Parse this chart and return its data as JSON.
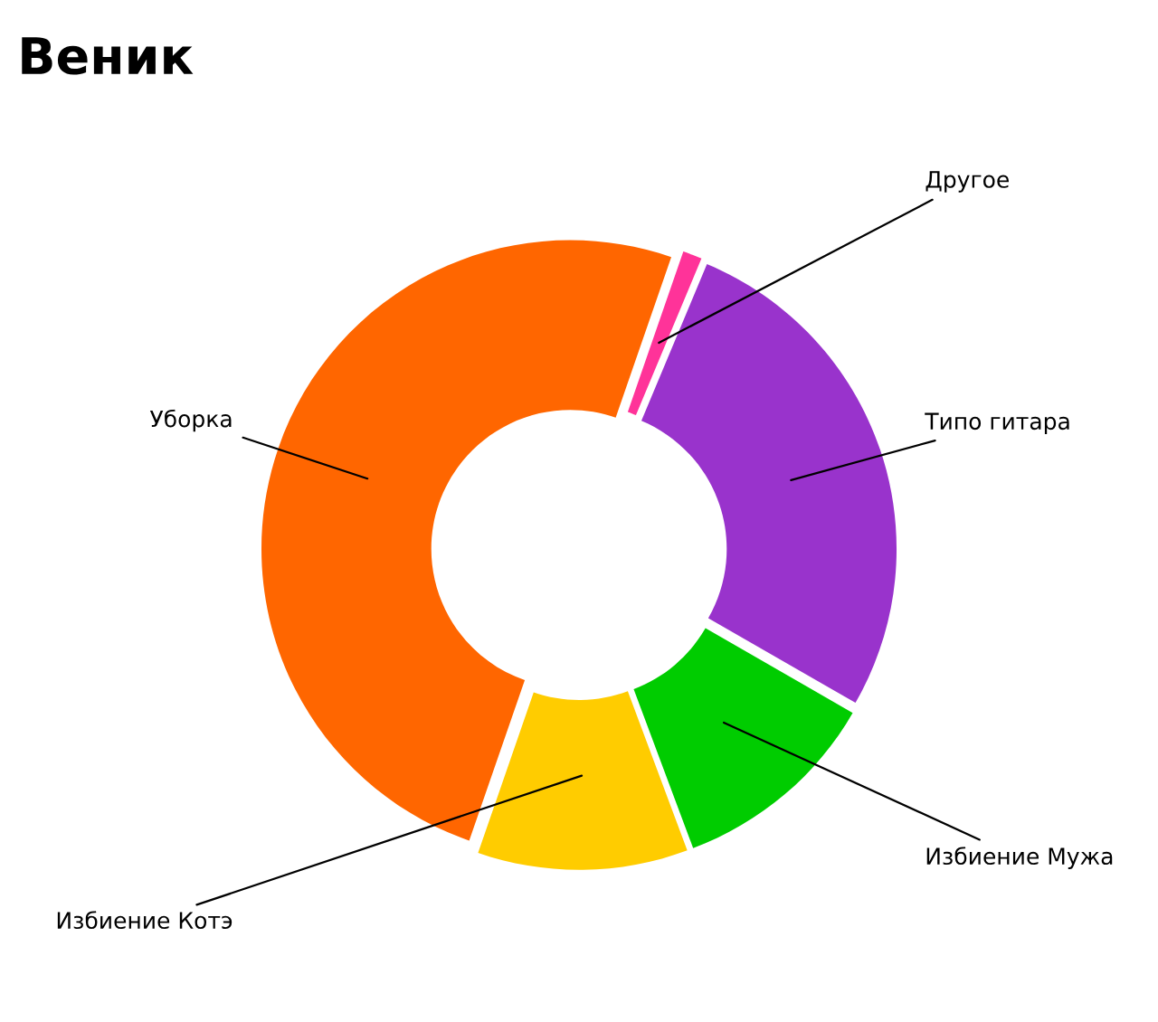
{
  "chart_data": {
    "type": "donut",
    "title": "Веник",
    "categories": [
      "Типо гитара",
      "Избиение Мужа",
      "Избиение Котэ",
      "Уборка",
      "Другое"
    ],
    "values": [
      27,
      11,
      11,
      50,
      1
    ],
    "colors": [
      "#9933cc",
      "#00cc00",
      "#ffcc00",
      "#ff6600",
      "#ff3399"
    ],
    "legend": false
  }
}
